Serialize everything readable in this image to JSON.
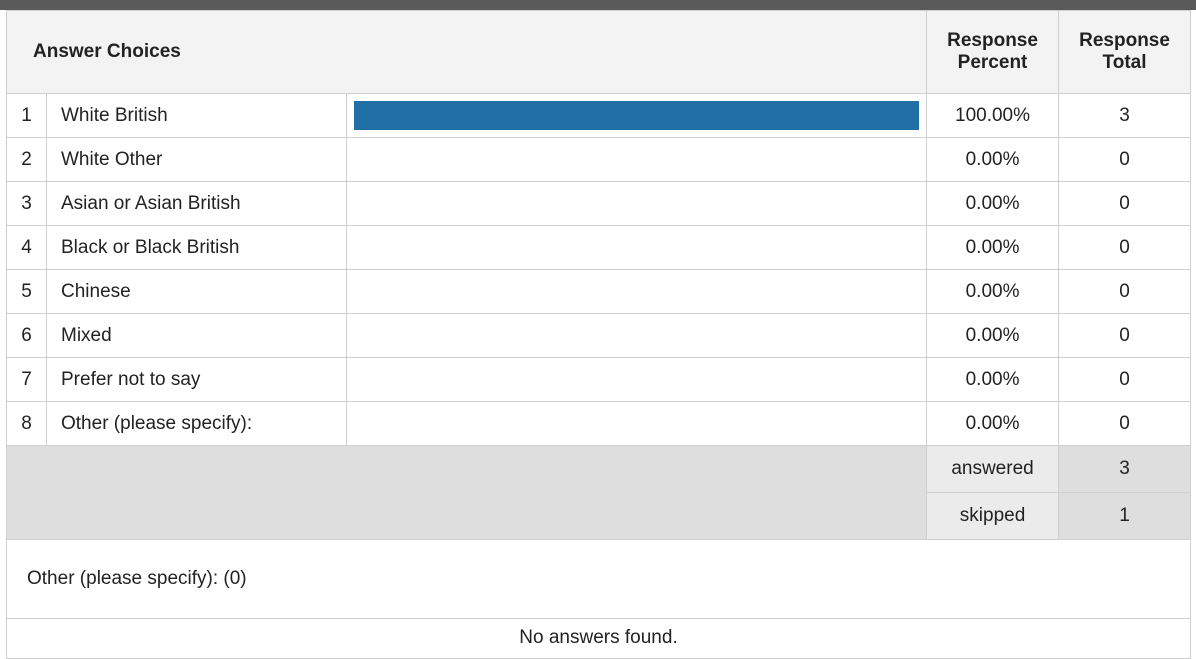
{
  "table": {
    "header": {
      "choices": "Answer Choices",
      "percent_line1": "Response",
      "percent_line2": "Percent",
      "total_line1": "Response",
      "total_line2": "Total"
    },
    "rows": [
      {
        "index": "1",
        "label": "White British",
        "percent": "100.00%",
        "total": "3",
        "fraction": 1.0
      },
      {
        "index": "2",
        "label": "White Other",
        "percent": "0.00%",
        "total": "0",
        "fraction": 0.0
      },
      {
        "index": "3",
        "label": "Asian or Asian British",
        "percent": "0.00%",
        "total": "0",
        "fraction": 0.0
      },
      {
        "index": "4",
        "label": "Black or Black British",
        "percent": "0.00%",
        "total": "0",
        "fraction": 0.0
      },
      {
        "index": "5",
        "label": "Chinese",
        "percent": "0.00%",
        "total": "0",
        "fraction": 0.0
      },
      {
        "index": "6",
        "label": "Mixed",
        "percent": "0.00%",
        "total": "0",
        "fraction": 0.0
      },
      {
        "index": "7",
        "label": "Prefer not to say",
        "percent": "0.00%",
        "total": "0",
        "fraction": 0.0
      },
      {
        "index": "8",
        "label": "Other (please specify):",
        "percent": "0.00%",
        "total": "0",
        "fraction": 0.0
      }
    ],
    "summary": {
      "answered_label": "answered",
      "answered_value": "3",
      "skipped_label": "skipped",
      "skipped_value": "1"
    },
    "other_section": {
      "title": "Other (please specify): (0)",
      "empty_text": "No answers found."
    }
  },
  "colors": {
    "bar": "#2170a5",
    "header_bg": "#f3f3f3",
    "summary_bg": "#dedede",
    "top_bar": "#5a5a5a"
  },
  "chart_data": {
    "type": "bar",
    "categories": [
      "White British",
      "White Other",
      "Asian or Asian British",
      "Black or Black British",
      "Chinese",
      "Mixed",
      "Prefer not to say",
      "Other (please specify):"
    ],
    "values": [
      100.0,
      0.0,
      0.0,
      0.0,
      0.0,
      0.0,
      0.0,
      0.0
    ],
    "counts": [
      3,
      0,
      0,
      0,
      0,
      0,
      0,
      0
    ],
    "ylim": [
      0,
      100
    ],
    "orientation": "horizontal"
  }
}
